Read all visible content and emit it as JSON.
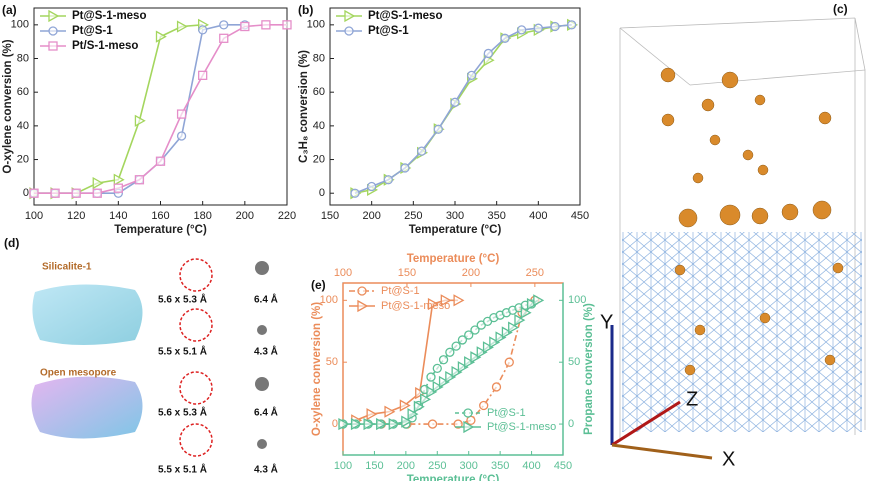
{
  "chart_data": [
    {
      "type": "line",
      "label": "(a)",
      "x_label": "Temperature (°C)",
      "y_label": "O-xylene conversion (%)",
      "xlim": [
        100,
        220
      ],
      "xticks": [
        100,
        120,
        140,
        160,
        180,
        200,
        220
      ],
      "ylim": [
        -7,
        110
      ],
      "yticks": [
        0,
        20,
        40,
        60,
        80,
        100
      ],
      "legend": "upper left",
      "series": [
        {
          "name": "Pt@S-1-meso",
          "color": "#a4d65e",
          "marker": "triangle-right",
          "x": [
            100,
            110,
            120,
            130,
            140,
            150,
            160,
            170,
            180
          ],
          "values": [
            0,
            0,
            0,
            6,
            8,
            43,
            93,
            99,
            100
          ]
        },
        {
          "name": "Pt@S-1",
          "color": "#8fa5d6",
          "marker": "circle",
          "x": [
            100,
            110,
            120,
            130,
            140,
            150,
            160,
            170,
            180,
            190,
            200
          ],
          "values": [
            0,
            0,
            0,
            0,
            0,
            8,
            19,
            34,
            97,
            100,
            100
          ]
        },
        {
          "name": "Pt/S-1-meso",
          "color": "#e58ec9",
          "marker": "square",
          "x": [
            100,
            110,
            120,
            130,
            140,
            150,
            160,
            170,
            180,
            190,
            200,
            210,
            220
          ],
          "values": [
            0,
            0,
            0,
            0,
            3,
            8,
            19,
            47,
            70,
            92,
            99,
            100,
            100
          ]
        }
      ]
    },
    {
      "type": "line",
      "label": "(b)",
      "x_label": "Temperature (°C)",
      "y_label": "C₃H₈ conversion (%)",
      "xlim": [
        150,
        450
      ],
      "xticks": [
        150,
        200,
        250,
        300,
        350,
        400,
        450
      ],
      "ylim": [
        -7,
        110
      ],
      "yticks": [
        0,
        20,
        40,
        60,
        80,
        100
      ],
      "legend": "upper left",
      "series": [
        {
          "name": "Pt@S-1-meso",
          "color": "#a4d65e",
          "marker": "triangle-right",
          "x": [
            180,
            200,
            220,
            240,
            260,
            280,
            300,
            320,
            340,
            360,
            380,
            400,
            420,
            440
          ],
          "values": [
            0,
            2,
            8,
            15,
            24,
            38,
            53,
            68,
            79,
            92,
            95,
            97,
            99,
            100
          ]
        },
        {
          "name": "Pt@S-1",
          "color": "#8fa5d6",
          "marker": "circle",
          "x": [
            180,
            200,
            220,
            240,
            260,
            280,
            300,
            320,
            340,
            360,
            380,
            400,
            420,
            440
          ],
          "values": [
            0,
            4,
            8,
            15,
            25,
            38,
            54,
            70,
            83,
            92,
            97,
            98,
            99,
            100
          ]
        }
      ]
    },
    {
      "type": "line",
      "label": "(e)",
      "x_label": "Temperature (°C)",
      "x2_label": "Temperature (°C)",
      "y_label": "O-xylene conversion (%)",
      "y2_label": "Propane conversion (%)",
      "xlim": [
        100,
        450
      ],
      "xticks": [
        100,
        150,
        200,
        250,
        300,
        350,
        400,
        450
      ],
      "x2lim": [
        100,
        272
      ],
      "x2ticks": [
        100,
        150,
        200,
        250
      ],
      "ylim": [
        -25,
        114
      ],
      "yticks": [
        0,
        50,
        100
      ],
      "y2lim": [
        -25,
        114
      ],
      "y2ticks": [
        0,
        50,
        100
      ],
      "axis_colors": {
        "x": "#5bbf95",
        "x2": "#eb8c5a",
        "y": "#eb8c5a",
        "y2": "#5bbf95"
      },
      "series": [
        {
          "name": "Pt@S-1",
          "color": "#eb8c5a",
          "marker": "circle",
          "dash": "6 3 2 3",
          "xaxis": "x2",
          "legend": "upper left",
          "x": [
            130,
            150,
            170,
            190,
            200,
            210,
            220,
            230,
            240,
            250
          ],
          "values": [
            0,
            0,
            0,
            0,
            3,
            15,
            30,
            50,
            90,
            100
          ]
        },
        {
          "name": "Pt@S-1-meso",
          "color": "#eb8c5a",
          "marker": "triangle-right",
          "xaxis": "x2",
          "legend": "upper left",
          "x": [
            110,
            122,
            136,
            148,
            160,
            170,
            180,
            190
          ],
          "values": [
            3,
            8,
            10,
            15,
            25,
            97,
            100,
            100
          ]
        },
        {
          "name": "Pt@S-1",
          "color": "#5bbf95",
          "marker": "circle",
          "dash": "4 3",
          "axis": "y2",
          "legend": "lower right",
          "x": [
            100,
            120,
            140,
            160,
            180,
            200,
            210,
            220,
            230,
            240,
            250,
            260,
            270,
            280,
            290,
            300,
            310,
            320,
            330,
            340,
            350,
            360,
            370,
            380,
            390,
            400
          ],
          "values": [
            0,
            0,
            0,
            0,
            0,
            0,
            5,
            15,
            28,
            38,
            45,
            52,
            58,
            63,
            68,
            72,
            76,
            80,
            83,
            86,
            88,
            90,
            92,
            94,
            96,
            97
          ]
        },
        {
          "name": "Pt@S-1-meso",
          "color": "#5bbf95",
          "marker": "triangle-right",
          "axis": "y2",
          "legend": "lower right",
          "x": [
            100,
            120,
            140,
            160,
            180,
            200,
            210,
            220,
            230,
            240,
            250,
            260,
            270,
            280,
            290,
            300,
            310,
            320,
            330,
            340,
            350,
            360,
            370,
            380,
            390,
            400,
            410
          ],
          "values": [
            0,
            0,
            0,
            0,
            0,
            2,
            8,
            14,
            20,
            26,
            30,
            34,
            38,
            42,
            46,
            50,
            54,
            58,
            62,
            66,
            70,
            74,
            78,
            84,
            90,
            97,
            100
          ]
        }
      ]
    }
  ],
  "panels": {
    "c": {
      "label": "(c)",
      "axes": [
        "Y",
        "Z",
        "X"
      ]
    },
    "d": {
      "label": "(d)",
      "top_title": "Silicalite-1",
      "bottom_title": "Open mesopore",
      "pores": [
        "5.6 x 5.3 Å",
        "5.5 x 5.1 Å",
        "5.6 x 5.3 Å",
        "5.5 x 5.1 Å"
      ],
      "molecules": [
        "6.4 Å",
        "4.3 Å",
        "6.4 Å",
        "4.3 Å"
      ]
    }
  }
}
